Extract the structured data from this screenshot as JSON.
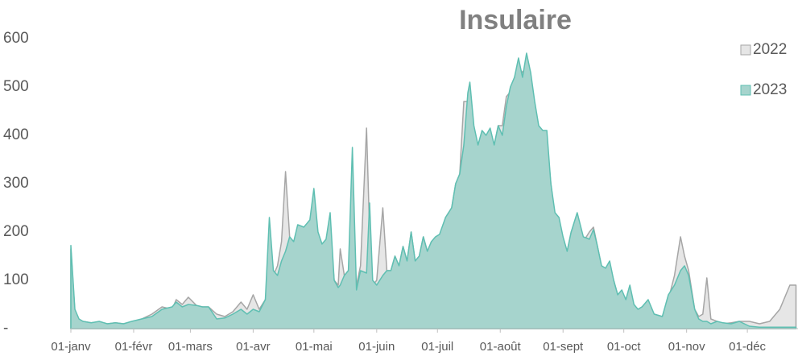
{
  "chart_data": {
    "type": "area",
    "title": "Insulaire",
    "x": [
      0,
      2,
      4,
      6,
      10,
      14,
      18,
      22,
      26,
      30,
      35,
      40,
      45,
      50,
      52,
      55,
      58,
      62,
      65,
      68,
      72,
      76,
      80,
      84,
      87,
      90,
      93,
      96,
      98,
      100,
      102,
      104,
      106,
      108,
      110,
      112,
      115,
      118,
      120,
      122,
      124,
      126,
      128,
      130,
      132,
      133,
      135,
      137,
      139,
      141,
      143,
      146,
      147.5,
      149,
      151,
      154,
      156,
      158,
      160,
      162,
      164,
      166,
      168,
      170,
      172,
      174,
      176,
      178,
      180,
      182,
      185,
      188,
      190,
      192,
      194,
      196,
      197,
      199,
      201,
      203,
      205,
      207,
      209,
      211,
      213,
      215,
      217,
      219,
      221,
      223,
      225,
      227,
      229,
      231,
      233,
      235,
      237,
      239,
      241,
      243,
      245,
      247,
      250,
      253,
      256,
      258,
      260,
      262,
      264,
      266,
      268,
      270,
      272,
      274,
      276,
      278,
      280,
      282,
      285,
      288,
      292,
      295,
      298,
      301,
      303,
      305,
      308,
      310,
      312,
      314,
      316,
      319,
      322,
      326,
      330,
      335,
      340,
      345,
      350,
      355,
      358
    ],
    "series": [
      {
        "name": "2022",
        "color": "#e6e6e6",
        "stroke": "#a6a6a6",
        "values": [
          165,
          35,
          18,
          15,
          12,
          14,
          10,
          12,
          10,
          14,
          20,
          30,
          45,
          40,
          60,
          50,
          65,
          48,
          45,
          45,
          30,
          25,
          35,
          55,
          40,
          70,
          40,
          60,
          100,
          110,
          130,
          180,
          325,
          190,
          170,
          180,
          190,
          200,
          185,
          180,
          170,
          180,
          200,
          100,
          90,
          165,
          110,
          120,
          130,
          90,
          130,
          415,
          200,
          90,
          100,
          250,
          120,
          120,
          150,
          130,
          170,
          140,
          200,
          140,
          150,
          190,
          160,
          180,
          185,
          190,
          230,
          250,
          300,
          320,
          470,
          470,
          480,
          390,
          380,
          390,
          380,
          400,
          380,
          420,
          420,
          480,
          490,
          520,
          540,
          530,
          545,
          510,
          460,
          400,
          350,
          390,
          300,
          230,
          210,
          180,
          160,
          200,
          200,
          180,
          200,
          210,
          170,
          130,
          125,
          130,
          100,
          70,
          70,
          60,
          80,
          40,
          40,
          45,
          50,
          30,
          25,
          60,
          110,
          190,
          150,
          120,
          40,
          25,
          30,
          105,
          20,
          15,
          10,
          12,
          15,
          15,
          10,
          15,
          40,
          90,
          90
        ]
      },
      {
        "name": "2023",
        "color": "#a6d4cd",
        "stroke": "#5fbfb2",
        "values": [
          172,
          40,
          20,
          15,
          12,
          15,
          10,
          12,
          10,
          15,
          20,
          25,
          40,
          45,
          55,
          45,
          50,
          48,
          45,
          45,
          20,
          22,
          30,
          40,
          30,
          40,
          35,
          60,
          230,
          120,
          110,
          140,
          160,
          190,
          180,
          215,
          210,
          225,
          290,
          200,
          175,
          185,
          240,
          100,
          85,
          90,
          110,
          120,
          375,
          80,
          120,
          115,
          260,
          100,
          90,
          110,
          120,
          120,
          150,
          130,
          170,
          140,
          200,
          140,
          150,
          190,
          160,
          180,
          190,
          195,
          230,
          250,
          300,
          320,
          380,
          488,
          510,
          420,
          380,
          410,
          400,
          415,
          380,
          420,
          400,
          460,
          500,
          520,
          560,
          520,
          570,
          530,
          470,
          420,
          410,
          410,
          300,
          240,
          230,
          190,
          160,
          200,
          240,
          190,
          185,
          205,
          170,
          130,
          125,
          140,
          100,
          70,
          80,
          60,
          90,
          50,
          40,
          45,
          60,
          30,
          25,
          70,
          90,
          120,
          130,
          110,
          40,
          20,
          15,
          15,
          10,
          15,
          12,
          10,
          15,
          5,
          3,
          3,
          3,
          3,
          3
        ]
      }
    ],
    "xlim": [
      0,
      359
    ],
    "ylim": [
      0,
      600
    ],
    "xticks": [
      {
        "value": 0,
        "label": "01-janv"
      },
      {
        "value": 31,
        "label": "01-févr"
      },
      {
        "value": 59,
        "label": "01-mars"
      },
      {
        "value": 90,
        "label": "01-avr"
      },
      {
        "value": 120,
        "label": "01-mai"
      },
      {
        "value": 151,
        "label": "01-juin"
      },
      {
        "value": 181,
        "label": "01-juil"
      },
      {
        "value": 212,
        "label": "01-août"
      },
      {
        "value": 243,
        "label": "01-sept"
      },
      {
        "value": 273,
        "label": "01-oct"
      },
      {
        "value": 304,
        "label": "01-nov"
      },
      {
        "value": 334,
        "label": "01-déc"
      }
    ],
    "yticks": [
      {
        "value": 0,
        "label": "-"
      },
      100,
      200,
      300,
      400,
      500,
      600
    ],
    "legend": "top-right"
  }
}
